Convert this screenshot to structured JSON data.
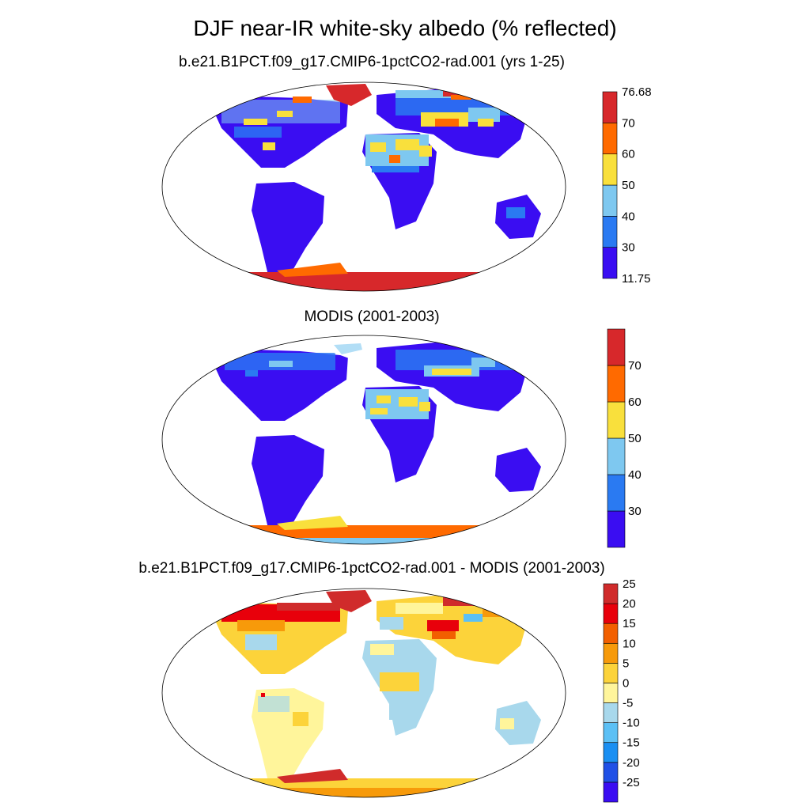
{
  "title": "DJF near-IR white-sky albedo (% reflected)",
  "panels": [
    {
      "title": "b.e21.B1PCT.f09_g17.CMIP6-1pctCO2-rad.001 (yrs 1-25)",
      "colorbar": {
        "colors": [
          "#3a0df2",
          "#2a7af2",
          "#7ec8f0",
          "#f9e03c",
          "#ff6a00",
          "#d7282b"
        ],
        "labels": [
          "11.75",
          "30",
          "40",
          "50",
          "60",
          "70",
          "76.68"
        ]
      }
    },
    {
      "title": "MODIS (2001-2003)",
      "colorbar": {
        "colors": [
          "#3a0df2",
          "#2a7af2",
          "#7ec8f0",
          "#f9e03c",
          "#ff6a00",
          "#d7282b"
        ],
        "labels": [
          "",
          "30",
          "40",
          "50",
          "60",
          "70",
          ""
        ]
      }
    },
    {
      "title": "b.e21.B1PCT.f09_g17.CMIP6-1pctCO2-rad.001 - MODIS (2001-2003)",
      "colorbar": {
        "colors": [
          "#3a0df2",
          "#2050e6",
          "#1a8ff2",
          "#5cc0f5",
          "#a8d8ec",
          "#fff59b",
          "#fcd33a",
          "#f79a0a",
          "#f25f00",
          "#e8000b",
          "#d02b2b"
        ],
        "labels": [
          "",
          "-25",
          "-20",
          "-15",
          "-10",
          "-5",
          "0",
          "5",
          "10",
          "15",
          "20",
          "25",
          ""
        ]
      }
    }
  ]
}
